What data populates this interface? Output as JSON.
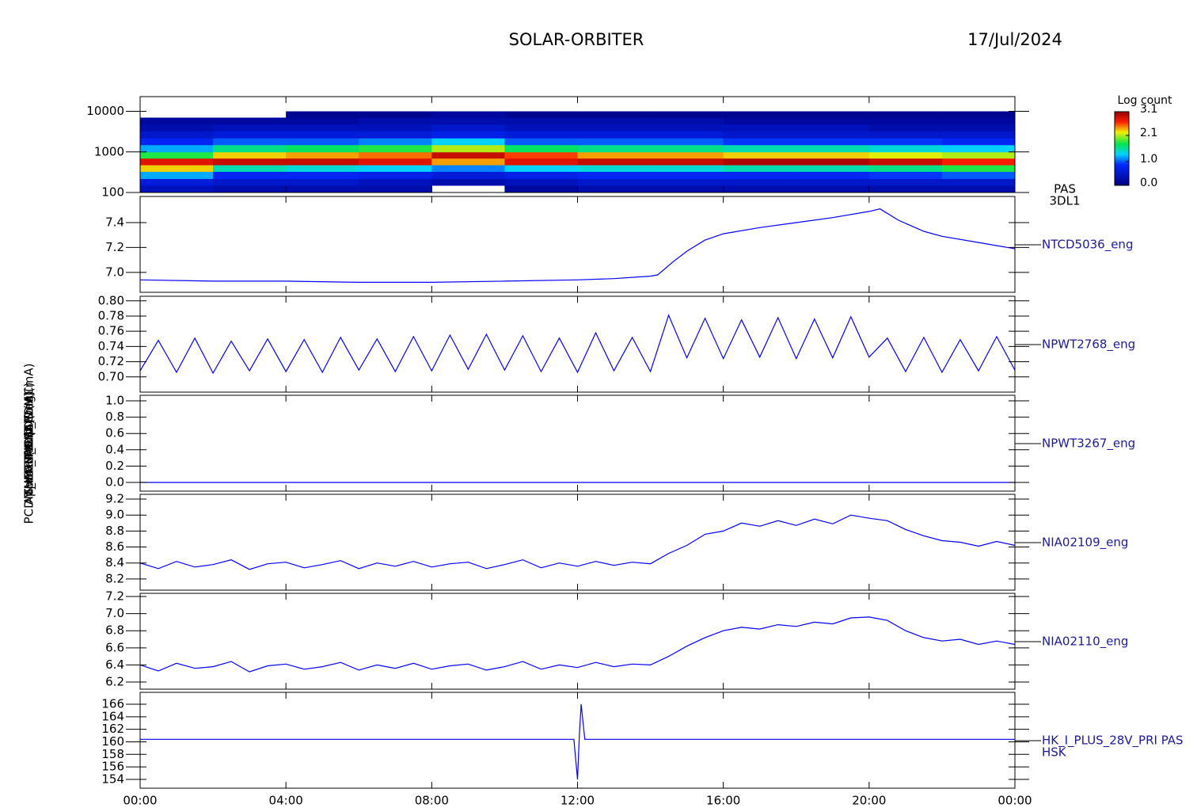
{
  "title": "SOLAR-ORBITER",
  "date": "17/Jul/2024",
  "chart_data": [
    {
      "type": "spectrogram",
      "log_scale": true,
      "ylim": [
        100,
        23000
      ],
      "yticks": [
        100,
        1000,
        10000
      ],
      "xlim": [
        0,
        24
      ],
      "ylabel": "(eV)",
      "right_label": [
        "PAS",
        "3DL1"
      ],
      "x_edges": [
        0,
        2,
        4,
        6,
        8,
        10,
        12,
        14,
        16,
        18,
        20,
        22,
        24
      ],
      "y_edges": [
        100,
        150,
        220,
        330,
        480,
        700,
        1000,
        1500,
        2200,
        3300,
        4800,
        7000,
        10000
      ],
      "values": [
        [
          0.4,
          0.6,
          1.2,
          2.3,
          2.8,
          1.8,
          1.2,
          0.8,
          0.5,
          0.3,
          0.2,
          null
        ],
        [
          0.3,
          0.5,
          0.8,
          1.5,
          2.9,
          2.3,
          1.6,
          1.0,
          0.6,
          0.4,
          0.2,
          null
        ],
        [
          0.3,
          0.5,
          0.8,
          1.4,
          2.9,
          2.4,
          1.7,
          1.0,
          0.6,
          0.4,
          0.2,
          0.1
        ],
        [
          0.3,
          0.4,
          0.7,
          1.3,
          2.8,
          2.5,
          1.8,
          1.1,
          0.6,
          0.4,
          0.3,
          0.1
        ],
        [
          null,
          0.3,
          0.6,
          1.1,
          2.4,
          2.9,
          2.1,
          1.3,
          0.7,
          0.5,
          0.3,
          0.2
        ],
        [
          0.2,
          0.4,
          0.7,
          1.3,
          2.8,
          2.6,
          1.7,
          1.0,
          0.6,
          0.4,
          0.3,
          0.1
        ],
        [
          0.3,
          0.5,
          0.8,
          1.4,
          2.9,
          2.4,
          1.6,
          1.0,
          0.6,
          0.4,
          0.3,
          0.1
        ],
        [
          0.3,
          0.5,
          0.8,
          1.4,
          2.9,
          2.4,
          1.6,
          1.0,
          0.6,
          0.4,
          0.3,
          0.1
        ],
        [
          0.3,
          0.5,
          0.8,
          1.5,
          3.0,
          2.3,
          1.5,
          0.9,
          0.5,
          0.4,
          0.2,
          0.1
        ],
        [
          0.3,
          0.5,
          0.8,
          1.5,
          3.0,
          2.3,
          1.5,
          0.9,
          0.5,
          0.4,
          0.2,
          0.1
        ],
        [
          0.3,
          0.5,
          0.9,
          1.6,
          2.9,
          2.2,
          1.4,
          0.9,
          0.5,
          0.3,
          0.2,
          0.1
        ],
        [
          0.3,
          0.5,
          1.0,
          1.8,
          2.7,
          2.1,
          1.3,
          0.8,
          0.5,
          0.3,
          0.2,
          0.1
        ]
      ],
      "colorbar_label": "Log count",
      "clim": [
        0,
        3.1
      ],
      "colorbar_ticks": [
        {
          "value": 0,
          "label": "0.0"
        },
        {
          "value": 1,
          "label": "1.0"
        },
        2.1,
        3.1
      ]
    },
    {
      "type": "line",
      "ylim": [
        6.84,
        7.61
      ],
      "xlim": [
        0,
        24
      ],
      "yticks": [
        {
          "value": 7,
          "label": "7.0"
        },
        7.2,
        7.4
      ],
      "ylabel": "Approx Temp (DegC)",
      "right_label": [
        "NTCD5036_eng"
      ],
      "x": [
        0,
        2,
        4,
        6,
        8,
        10,
        12,
        13,
        14,
        14.2,
        14.6,
        15,
        15.5,
        16,
        17,
        18,
        19,
        20,
        20.3,
        20.8,
        21.5,
        22,
        23,
        24
      ],
      "series": [
        {
          "color": "#0000ff",
          "values": [
            6.94,
            6.93,
            6.93,
            6.92,
            6.92,
            6.93,
            6.94,
            6.95,
            6.97,
            6.98,
            7.08,
            7.17,
            7.26,
            7.31,
            7.36,
            7.4,
            7.44,
            7.49,
            7.51,
            7.42,
            7.33,
            7.29,
            7.24,
            7.19
          ]
        }
      ]
    },
    {
      "type": "line",
      "ylim": [
        0.68,
        0.806
      ],
      "xlim": [
        0,
        24
      ],
      "yticks": [
        {
          "value": 0.7,
          "label": "0.70"
        },
        0.72,
        0.74,
        0.76,
        0.78,
        {
          "value": 0.8,
          "label": "0.80"
        }
      ],
      "ylabel": "SWA-EAS TDS (V)",
      "right_label": [
        "NPWT2768_eng"
      ],
      "x": [
        0,
        0.5,
        1,
        1.5,
        2,
        2.5,
        3,
        3.5,
        4,
        4.5,
        5,
        5.5,
        6,
        6.5,
        7,
        7.5,
        8,
        8.5,
        9,
        9.5,
        10,
        10.5,
        11,
        11.5,
        12,
        12.5,
        13,
        13.5,
        14,
        14.5,
        15,
        15.5,
        16,
        16.5,
        17,
        17.5,
        18,
        18.5,
        19,
        19.5,
        20,
        20.5,
        21,
        21.5,
        22,
        22.5,
        23,
        23.5,
        24
      ],
      "series": [
        {
          "color": "#0000ff",
          "values": [
            0.708,
            0.748,
            0.706,
            0.751,
            0.705,
            0.747,
            0.708,
            0.75,
            0.707,
            0.749,
            0.706,
            0.752,
            0.709,
            0.75,
            0.707,
            0.753,
            0.708,
            0.755,
            0.71,
            0.756,
            0.709,
            0.754,
            0.707,
            0.751,
            0.706,
            0.758,
            0.708,
            0.752,
            0.707,
            0.781,
            0.725,
            0.777,
            0.724,
            0.775,
            0.726,
            0.778,
            0.724,
            0.776,
            0.725,
            0.779,
            0.726,
            0.751,
            0.707,
            0.752,
            0.706,
            0.749,
            0.708,
            0.753,
            0.709
          ]
        }
      ]
    },
    {
      "type": "line",
      "ylim": [
        -0.107,
        1.068
      ],
      "xlim": [
        0,
        24
      ],
      "yticks": [
        {
          "value": 0,
          "label": "0.0"
        },
        0.2,
        0.4,
        0.6,
        0.8,
        {
          "value": 1,
          "label": "1.0"
        }
      ],
      "ylabel": "RPW (A)",
      "right_label": [
        "NPWT3267_eng"
      ],
      "x": [
        0,
        24
      ],
      "series": [
        {
          "color": "#0000ff",
          "values": [
            0,
            0
          ]
        }
      ]
    },
    {
      "type": "line",
      "ylim": [
        8.06,
        9.26
      ],
      "xlim": [
        0,
        24
      ],
      "yticks": [
        8.2,
        8.4,
        8.6,
        8.8,
        {
          "value": 9,
          "label": "9.0"
        },
        9.2
      ],
      "ylabel": "THERM_CH4 (mA)",
      "right_label": [
        "NIA02109_eng"
      ],
      "x": [
        0,
        0.5,
        1,
        1.5,
        2,
        2.5,
        3,
        3.5,
        4,
        4.5,
        5,
        5.5,
        6,
        6.5,
        7,
        7.5,
        8,
        8.5,
        9,
        9.5,
        10,
        10.5,
        11,
        11.5,
        12,
        12.5,
        13,
        13.5,
        14,
        14.5,
        15,
        15.5,
        16,
        16.5,
        17,
        17.5,
        18,
        18.5,
        19,
        19.5,
        20,
        20.5,
        21,
        21.5,
        22,
        22.5,
        23,
        23.5,
        24
      ],
      "series": [
        {
          "color": "#0000ff",
          "values": [
            8.4,
            8.33,
            8.42,
            8.35,
            8.38,
            8.44,
            8.32,
            8.39,
            8.41,
            8.34,
            8.38,
            8.43,
            8.33,
            8.4,
            8.36,
            8.42,
            8.35,
            8.39,
            8.41,
            8.33,
            8.38,
            8.44,
            8.34,
            8.4,
            8.36,
            8.42,
            8.37,
            8.41,
            8.39,
            8.52,
            8.62,
            8.76,
            8.8,
            8.9,
            8.86,
            8.93,
            8.87,
            8.95,
            8.89,
            9.0,
            8.96,
            8.93,
            8.82,
            8.74,
            8.68,
            8.66,
            8.61,
            8.67,
            8.62
          ]
        }
      ]
    },
    {
      "type": "line",
      "ylim": [
        6.117,
        7.237
      ],
      "xlim": [
        0,
        24
      ],
      "yticks": [
        6.2,
        6.4,
        6.6,
        6.8,
        {
          "value": 7,
          "label": "7.0"
        },
        7.2
      ],
      "ylabel": "THERM_CH5 (mA)",
      "right_label": [
        "NIA02110_eng"
      ],
      "x": [
        0,
        0.5,
        1,
        1.5,
        2,
        2.5,
        3,
        3.5,
        4,
        4.5,
        5,
        5.5,
        6,
        6.5,
        7,
        7.5,
        8,
        8.5,
        9,
        9.5,
        10,
        10.5,
        11,
        11.5,
        12,
        12.5,
        13,
        13.5,
        14,
        14.5,
        15,
        15.5,
        16,
        16.5,
        17,
        17.5,
        18,
        18.5,
        19,
        19.5,
        20,
        20.5,
        21,
        21.5,
        22,
        22.5,
        23,
        23.5,
        24
      ],
      "series": [
        {
          "color": "#0000ff",
          "values": [
            6.4,
            6.33,
            6.42,
            6.36,
            6.38,
            6.44,
            6.32,
            6.39,
            6.41,
            6.35,
            6.38,
            6.43,
            6.34,
            6.4,
            6.36,
            6.42,
            6.35,
            6.39,
            6.41,
            6.34,
            6.38,
            6.44,
            6.35,
            6.4,
            6.37,
            6.43,
            6.38,
            6.41,
            6.4,
            6.5,
            6.62,
            6.72,
            6.8,
            6.84,
            6.82,
            6.87,
            6.85,
            6.9,
            6.88,
            6.95,
            6.96,
            6.92,
            6.8,
            6.72,
            6.68,
            6.7,
            6.64,
            6.68,
            6.64
          ]
        }
      ]
    },
    {
      "type": "line",
      "ylim": [
        152.6,
        167.9
      ],
      "xlim": [
        0,
        24
      ],
      "yticks": [
        154,
        156,
        158,
        160,
        162,
        164,
        166
      ],
      "ylabel": "PCDM_HK_IMON_PDM (mA)",
      "right_label": [
        "HK_I_PLUS_28V_PRI PAS",
        "HSK"
      ],
      "x": [
        0,
        11.9,
        12.0,
        12.05,
        12.1,
        12.2,
        24
      ],
      "series": [
        {
          "color": "#0000ff",
          "values": [
            160.4,
            160.4,
            154,
            161,
            166,
            160.4,
            160.4
          ]
        }
      ],
      "xticks": [
        {
          "value": 0,
          "label": "00:00"
        },
        {
          "value": 4,
          "label": "04:00"
        },
        {
          "value": 8,
          "label": "08:00"
        },
        {
          "value": 12,
          "label": "12:00"
        },
        {
          "value": 16,
          "label": "16:00"
        },
        {
          "value": 20,
          "label": "20:00"
        },
        {
          "value": 24,
          "label": "00:00"
        }
      ]
    }
  ]
}
